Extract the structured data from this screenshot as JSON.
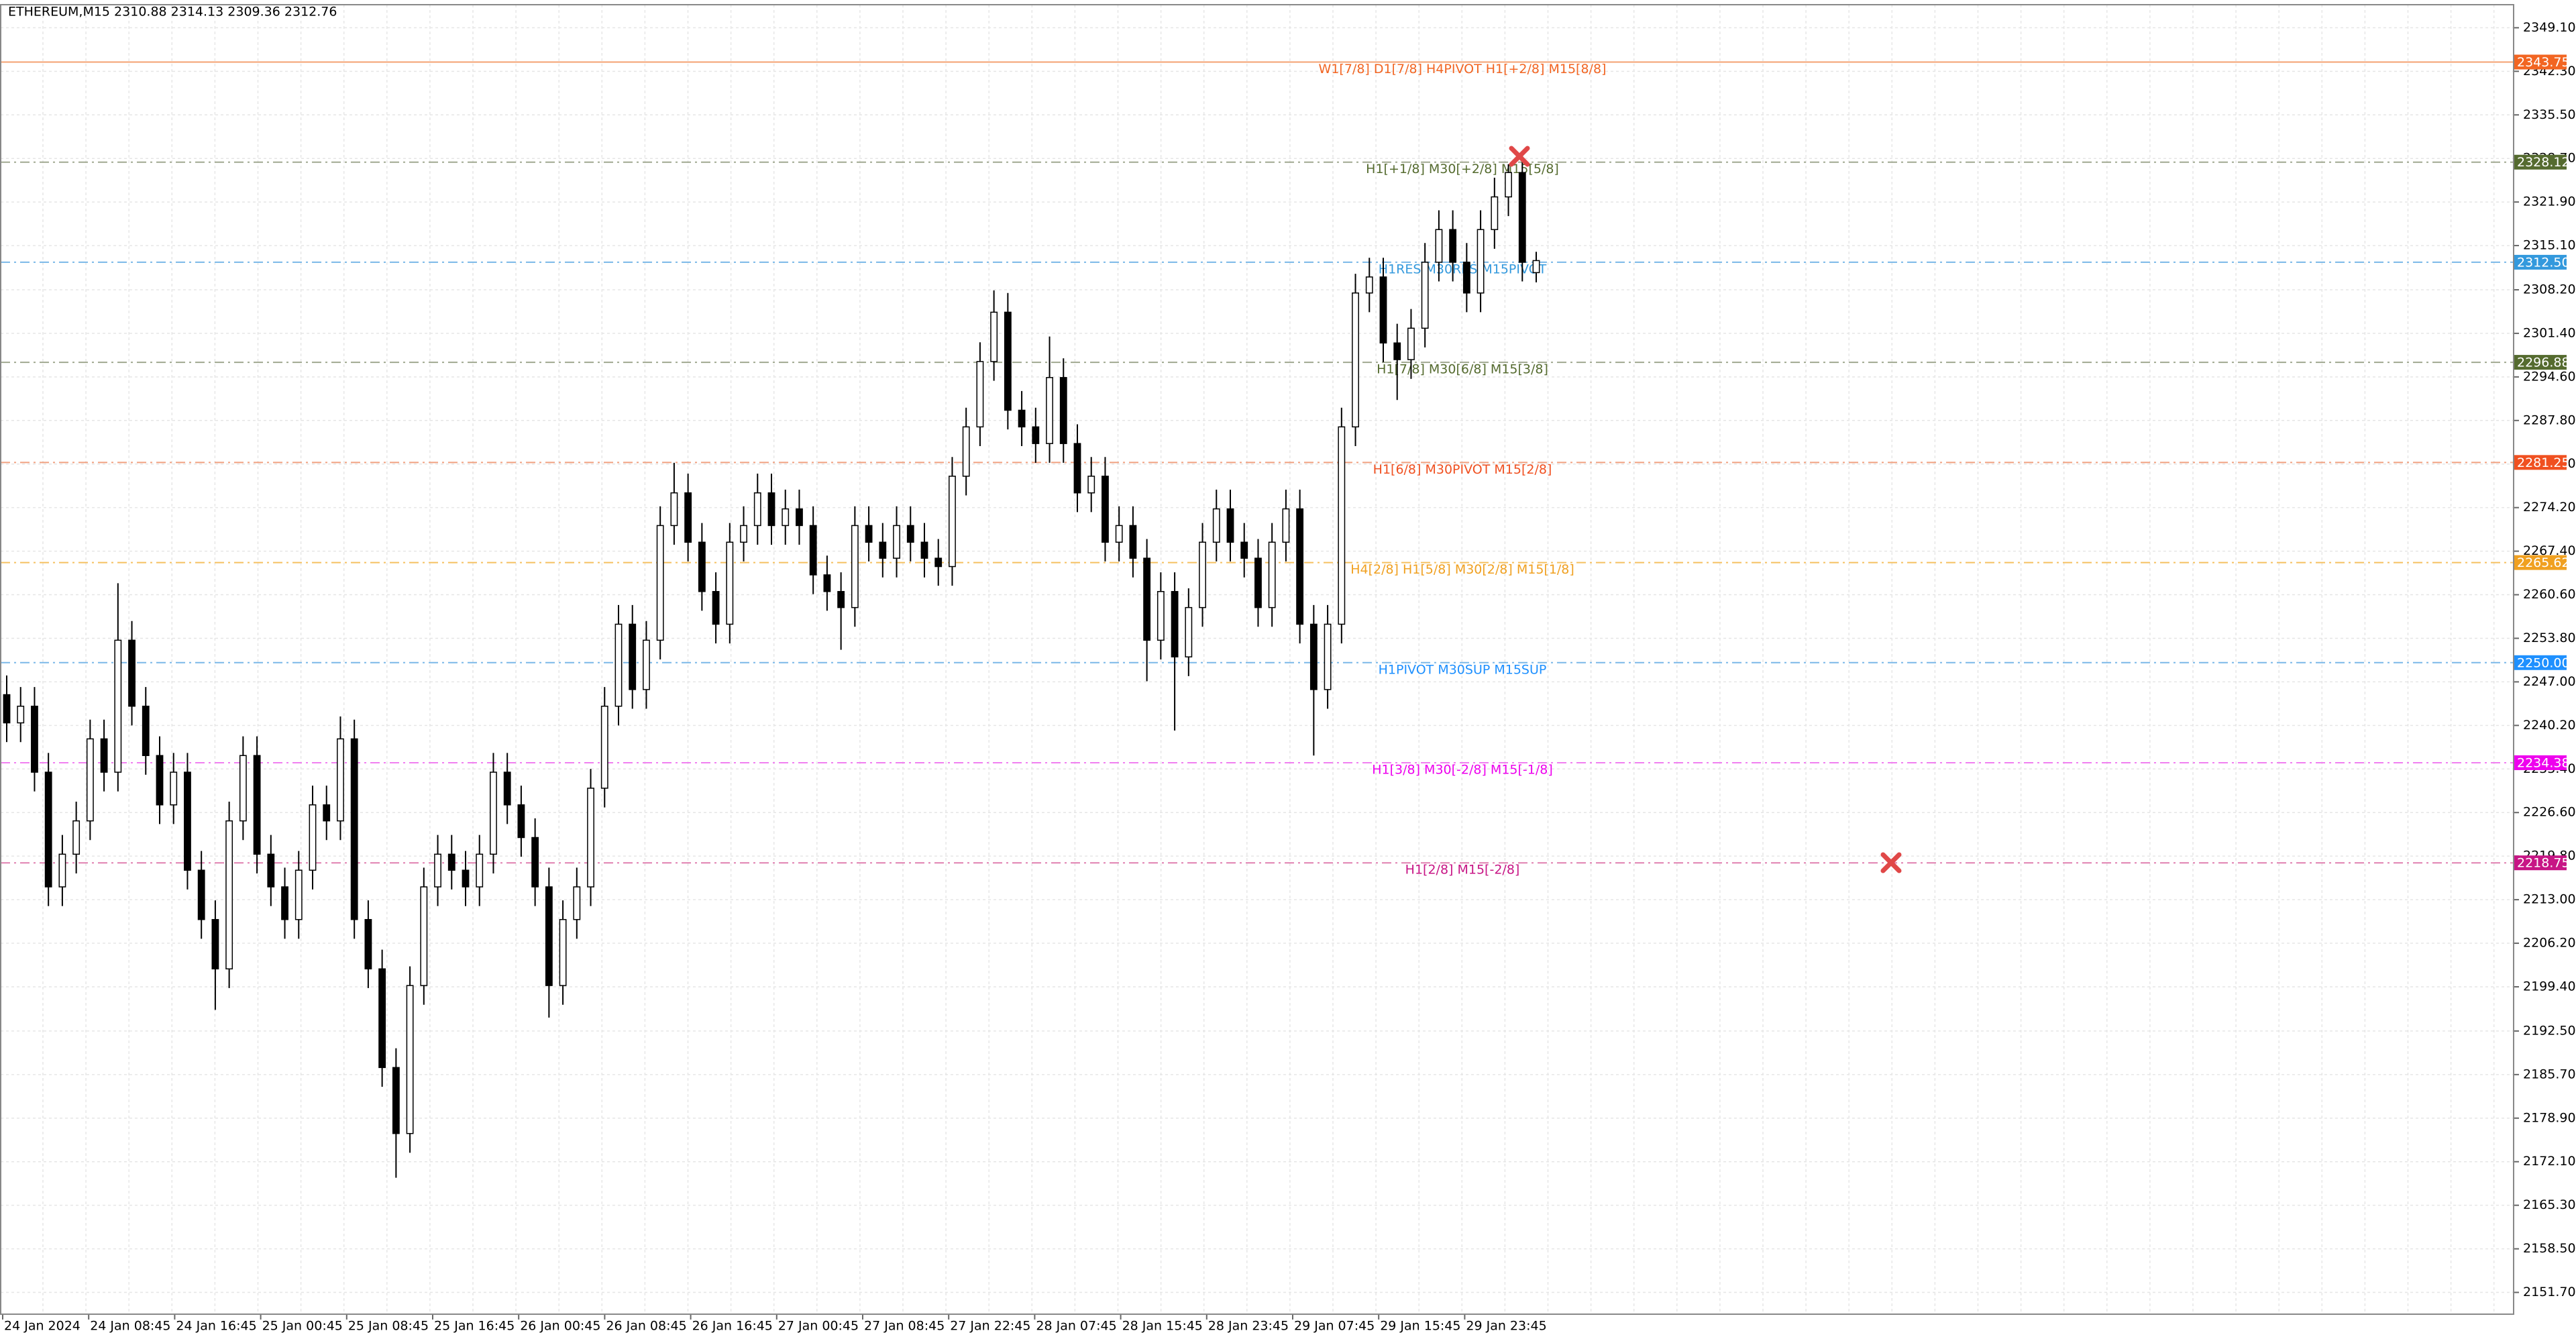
{
  "chart_data": {
    "type": "candlestick",
    "title": "ETHEREUM,M15  2310.88 2314.13 2309.36 2312.76",
    "x_labels": [
      "24 Jan 2024",
      "24 Jan 08:45",
      "24 Jan 16:45",
      "25 Jan 00:45",
      "25 Jan 08:45",
      "25 Jan 16:45",
      "26 Jan 00:45",
      "26 Jan 08:45",
      "26 Jan 16:45",
      "27 Jan 00:45",
      "27 Jan 08:45",
      "27 Jan 22:45",
      "28 Jan 07:45",
      "28 Jan 15:45",
      "28 Jan 23:45",
      "29 Jan 07:45",
      "29 Jan 15:45",
      "29 Jan 23:45"
    ],
    "open": [
      2245.0,
      2240.6,
      2243.2,
      2232.9,
      2215.0,
      2220.1,
      2225.3,
      2238.1,
      2232.9,
      2253.5,
      2243.2,
      2235.5,
      2227.8,
      2232.9,
      2217.6,
      2209.9,
      2202.2,
      2225.3,
      2235.5,
      2220.1,
      2215.0,
      2209.9,
      2217.6,
      2227.8,
      2225.3,
      2238.1,
      2209.9,
      2202.2,
      2186.8,
      2176.5,
      2199.6,
      2215.0,
      2220.1,
      2217.6,
      2215.0,
      2220.1,
      2232.9,
      2227.8,
      2222.7,
      2215.0,
      2199.6,
      2209.9,
      2215.0,
      2230.4,
      2243.2,
      2256.0,
      2245.8,
      2253.5,
      2271.4,
      2276.5,
      2268.8,
      2261.1,
      2256.0,
      2268.8,
      2271.4,
      2276.5,
      2271.4,
      2274.0,
      2271.4,
      2263.7,
      2261.1,
      2258.6,
      2271.4,
      2268.8,
      2266.3,
      2271.4,
      2268.8,
      2266.3,
      2265.0,
      2279.1,
      2286.8,
      2297.0,
      2304.7,
      2289.4,
      2286.8,
      2284.2,
      2294.5,
      2284.2,
      2276.5,
      2279.1,
      2268.8,
      2271.4,
      2266.3,
      2253.5,
      2261.1,
      2250.9,
      2258.6,
      2268.8,
      2274.0,
      2268.8,
      2266.3,
      2258.6,
      2268.8,
      2274.0,
      2256.0,
      2245.8,
      2256.0,
      2286.8,
      2307.7,
      2310.2,
      2299.9,
      2297.3,
      2302.2,
      2312.5,
      2317.6,
      2312.5,
      2307.7,
      2317.6,
      2322.7,
      2326.5,
      2310.88
    ],
    "high": [
      2248.0,
      2246.2,
      2246.2,
      2235.9,
      2223.1,
      2228.3,
      2241.1,
      2241.1,
      2262.4,
      2256.5,
      2246.2,
      2238.5,
      2235.9,
      2235.9,
      2220.6,
      2212.9,
      2228.3,
      2238.5,
      2238.5,
      2223.1,
      2218.0,
      2220.6,
      2230.8,
      2230.8,
      2241.6,
      2241.1,
      2212.9,
      2205.2,
      2189.8,
      2202.6,
      2218.0,
      2223.1,
      2223.1,
      2220.6,
      2223.1,
      2235.9,
      2235.9,
      2230.8,
      2225.7,
      2218.0,
      2212.9,
      2218.0,
      2233.4,
      2246.2,
      2259.0,
      2259.0,
      2256.5,
      2274.4,
      2281.2,
      2279.5,
      2271.8,
      2264.1,
      2271.8,
      2274.4,
      2279.5,
      2279.5,
      2277.0,
      2277.0,
      2274.4,
      2266.7,
      2264.1,
      2274.4,
      2274.4,
      2271.8,
      2274.4,
      2274.4,
      2271.8,
      2269.3,
      2282.1,
      2289.8,
      2300.0,
      2308.1,
      2307.7,
      2292.4,
      2289.8,
      2300.9,
      2297.5,
      2287.2,
      2282.1,
      2282.1,
      2274.4,
      2274.4,
      2269.3,
      2264.1,
      2264.1,
      2261.6,
      2271.8,
      2277.0,
      2277.0,
      2271.8,
      2269.3,
      2271.8,
      2277.0,
      2277.0,
      2259.0,
      2259.0,
      2289.8,
      2310.7,
      2313.2,
      2313.2,
      2302.9,
      2305.2,
      2315.5,
      2320.6,
      2320.6,
      2315.5,
      2320.6,
      2325.7,
      2327.8,
      2329.5,
      2314.13
    ],
    "low": [
      2237.6,
      2237.6,
      2229.9,
      2212.0,
      2212.0,
      2217.1,
      2222.3,
      2229.9,
      2229.9,
      2240.2,
      2232.5,
      2224.8,
      2224.8,
      2214.6,
      2206.9,
      2195.8,
      2199.2,
      2222.3,
      2217.1,
      2212.0,
      2206.9,
      2206.9,
      2214.6,
      2222.3,
      2222.3,
      2206.9,
      2199.2,
      2183.8,
      2169.6,
      2173.5,
      2196.6,
      2212.0,
      2214.6,
      2212.0,
      2212.0,
      2217.1,
      2224.8,
      2219.7,
      2212.0,
      2194.6,
      2196.6,
      2206.9,
      2212.0,
      2227.4,
      2240.2,
      2242.8,
      2242.8,
      2250.5,
      2268.4,
      2265.8,
      2258.1,
      2253.0,
      2253.0,
      2265.8,
      2268.4,
      2268.4,
      2268.4,
      2268.4,
      2260.7,
      2258.1,
      2252.0,
      2255.6,
      2265.8,
      2263.3,
      2263.3,
      2265.8,
      2263.3,
      2262.0,
      2262.0,
      2276.1,
      2283.8,
      2294.0,
      2286.4,
      2283.8,
      2281.2,
      2281.2,
      2281.2,
      2273.5,
      2273.5,
      2265.8,
      2265.8,
      2263.3,
      2247.1,
      2250.5,
      2239.4,
      2247.9,
      2255.6,
      2265.8,
      2265.8,
      2263.3,
      2255.6,
      2255.6,
      2265.8,
      2253.0,
      2235.5,
      2242.8,
      2253.0,
      2283.8,
      2304.7,
      2296.9,
      2291.0,
      2294.3,
      2299.2,
      2309.5,
      2309.5,
      2304.7,
      2304.7,
      2314.6,
      2319.7,
      2309.5,
      2309.36
    ],
    "close": [
      2240.6,
      2243.2,
      2232.9,
      2215.0,
      2220.1,
      2225.3,
      2238.1,
      2232.9,
      2253.5,
      2243.2,
      2235.5,
      2227.8,
      2232.9,
      2217.6,
      2209.9,
      2202.2,
      2225.3,
      2235.5,
      2220.1,
      2215.0,
      2209.9,
      2217.6,
      2227.8,
      2225.3,
      2238.1,
      2209.9,
      2202.2,
      2186.8,
      2176.5,
      2199.6,
      2215.0,
      2220.1,
      2217.6,
      2215.0,
      2220.1,
      2232.9,
      2227.8,
      2222.7,
      2215.0,
      2199.6,
      2209.9,
      2215.0,
      2230.4,
      2243.2,
      2256.0,
      2245.8,
      2253.5,
      2271.4,
      2276.5,
      2268.8,
      2261.1,
      2256.0,
      2268.8,
      2271.4,
      2276.5,
      2271.4,
      2274.0,
      2271.4,
      2263.7,
      2261.1,
      2258.6,
      2271.4,
      2268.8,
      2266.3,
      2271.4,
      2268.8,
      2266.3,
      2265.0,
      2279.1,
      2286.8,
      2297.0,
      2304.7,
      2289.4,
      2286.8,
      2284.2,
      2294.5,
      2284.2,
      2276.5,
      2279.1,
      2268.8,
      2271.4,
      2266.3,
      2253.5,
      2261.1,
      2250.9,
      2258.6,
      2268.8,
      2274.0,
      2268.8,
      2266.3,
      2258.6,
      2268.8,
      2274.0,
      2256.0,
      2245.8,
      2256.0,
      2286.8,
      2307.7,
      2310.2,
      2299.9,
      2297.3,
      2302.2,
      2312.5,
      2317.6,
      2312.5,
      2307.7,
      2317.6,
      2322.7,
      2326.5,
      2312.5,
      2312.76
    ],
    "ylim": [
      2148.3,
      2352.7
    ],
    "yticks": [
      {
        "value": 2349.1,
        "label": "2349.10"
      },
      {
        "value": 2342.3,
        "label": "2342.30"
      },
      {
        "value": 2335.5,
        "label": "2335.50"
      },
      {
        "value": 2328.7,
        "label": "2328.70"
      },
      {
        "value": 2321.9,
        "label": "2321.90"
      },
      {
        "value": 2315.1,
        "label": "2315.10"
      },
      {
        "value": 2308.2,
        "label": "2308.20"
      },
      {
        "value": 2301.4,
        "label": "2301.40"
      },
      {
        "value": 2294.6,
        "label": "2294.60"
      },
      {
        "value": 2287.8,
        "label": "2287.80"
      },
      {
        "value": 2281,
        "label": "2281.00"
      },
      {
        "value": 2274.2,
        "label": "2274.20"
      },
      {
        "value": 2267.4,
        "label": "2267.40"
      },
      {
        "value": 2260.6,
        "label": "2260.60"
      },
      {
        "value": 2253.8,
        "label": "2253.80"
      },
      {
        "value": 2247,
        "label": "2247.00"
      },
      {
        "value": 2240.2,
        "label": "2240.20"
      },
      {
        "value": 2233.4,
        "label": "2233.40"
      },
      {
        "value": 2226.6,
        "label": "2226.60"
      },
      {
        "value": 2219.8,
        "label": "2219.80"
      },
      {
        "value": 2213,
        "label": "2213.00"
      },
      {
        "value": 2206.2,
        "label": "2206.20"
      },
      {
        "value": 2199.4,
        "label": "2199.40"
      },
      {
        "value": 2192.5,
        "label": "2192.50"
      },
      {
        "value": 2185.7,
        "label": "2185.70"
      },
      {
        "value": 2178.9,
        "label": "2178.90"
      },
      {
        "value": 2172.1,
        "label": "2172.10"
      },
      {
        "value": 2165.3,
        "label": "2165.30"
      },
      {
        "value": 2158.5,
        "label": "2158.50"
      },
      {
        "value": 2151.7,
        "label": "2151.70"
      }
    ],
    "grid": true,
    "levels": [
      {
        "value": 2343.75,
        "text": "W1[7/8] D1[7/8] H4PIVOT H1[+2/8] M15[8/8]",
        "color": "#f26522",
        "line_color": "#f4a070",
        "style": "solid"
      },
      {
        "value": 2328.12,
        "text": "H1[+1/8] M30[+2/8] M15[5/8]",
        "color": "#556b2f",
        "line_color": "#a0a890",
        "style": "dashdot"
      },
      {
        "value": 2312.5,
        "price_label": "2312.50",
        "text": "H1RES M30RES M15PIVOT",
        "color": "#3399dd",
        "line_color": "#7ab8e8",
        "style": "dashdot"
      },
      {
        "value": 2296.88,
        "text": "H1[7/8] M30[6/8] M15[3/8]",
        "color": "#556b2f",
        "line_color": "#a0a890",
        "style": "dashdot"
      },
      {
        "value": 2281.25,
        "text": "H1[6/8] M30PIVOT M15[2/8]",
        "color": "#f05020",
        "line_color": "#f0a080",
        "style": "dashdot"
      },
      {
        "value": 2265.62,
        "text": "H4[2/8] H1[5/8] M30[2/8] M15[1/8]",
        "color": "#f0a020",
        "line_color": "#f5c060",
        "style": "dashdot"
      },
      {
        "value": 2250,
        "price_label": "2250.00",
        "text": "H1PIVOT M30SUP M15SUP",
        "color": "#1e90ff",
        "line_color": "#7ab8e8",
        "style": "dashdot"
      },
      {
        "value": 2234.38,
        "text": "H1[3/8] M30[-2/8] M15[-1/8]",
        "color": "#ee00ee",
        "line_color": "#f080f0",
        "style": "dashdot"
      },
      {
        "value": 2218.75,
        "text": "H1[2/8] M15[-2/8]",
        "color": "#c71585",
        "line_color": "#e080b0",
        "style": "dashdot"
      }
    ]
  }
}
